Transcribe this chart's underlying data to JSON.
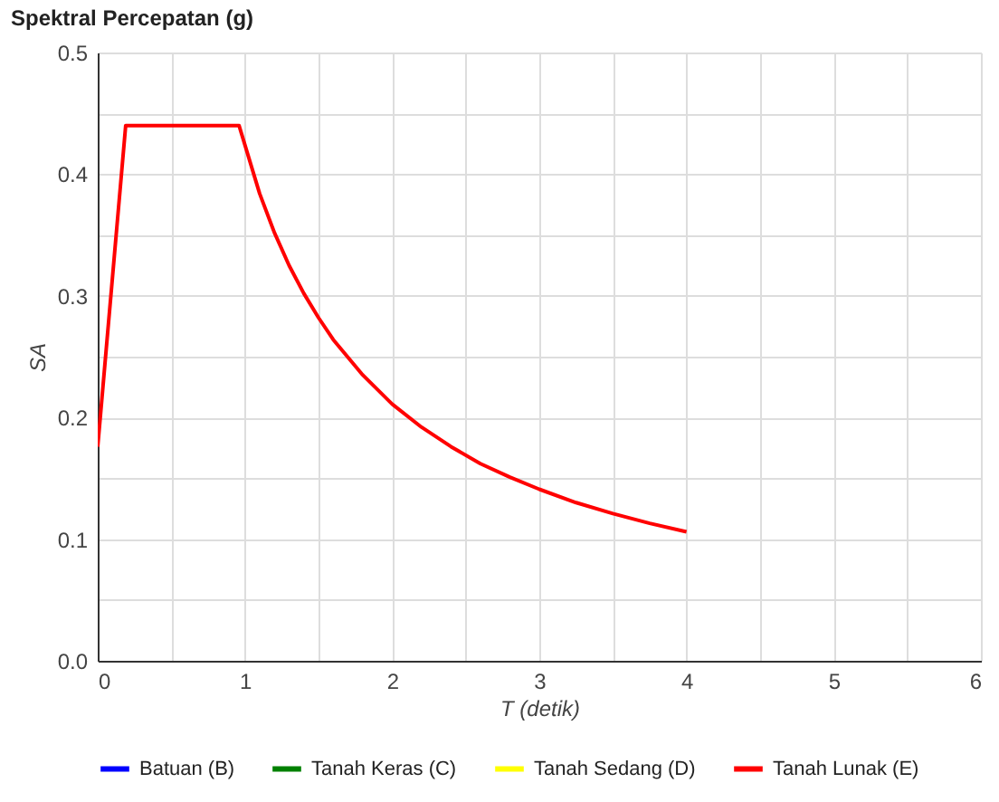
{
  "chart_data": {
    "type": "line",
    "title": "Spektral Percepatan (g)",
    "xlabel": "T (detik)",
    "ylabel": "SA",
    "xlim": [
      0,
      6
    ],
    "xticks": [
      0,
      {
        "value": 0.5,
        "label": null
      },
      1,
      {
        "value": 1.5,
        "label": null
      },
      2,
      {
        "value": 2.5,
        "label": null
      },
      3,
      {
        "value": 3.5,
        "label": null
      },
      4,
      {
        "value": 4.5,
        "label": null
      },
      5,
      {
        "value": 5.5,
        "label": null
      },
      6
    ],
    "ylim": [
      0,
      0.5
    ],
    "yticks": [
      {
        "value": 0,
        "label": "0.0"
      },
      {
        "value": 0.05,
        "label": null
      },
      0.1,
      {
        "value": 0.15,
        "label": null
      },
      0.2,
      {
        "value": 0.25,
        "label": null
      },
      0.3,
      {
        "value": 0.35,
        "label": null
      },
      0.4,
      {
        "value": 0.45,
        "label": null
      },
      0.5
    ],
    "grid": true,
    "legend": "bottom",
    "marker": "none",
    "series": [
      {
        "name": "Batuan (B)",
        "color": "#0000ff"
      },
      {
        "name": "Tanah Keras (C)",
        "color": "#008000"
      },
      {
        "name": "Tanah Sedang (D)",
        "color": "#ffff00"
      },
      {
        "name": "Tanah Lunak (E)",
        "color": "#ff0000",
        "x": [
          0,
          0.19,
          0.96,
          1.1,
          1.2,
          1.3,
          1.4,
          1.5,
          1.6,
          1.8,
          2,
          2.2,
          2.4,
          2.6,
          2.8,
          3,
          3.25,
          3.5,
          3.75,
          4
        ],
        "values": [
          0.176,
          0.44,
          0.44,
          0.384,
          0.352,
          0.325,
          0.302,
          0.282,
          0.264,
          0.235,
          0.211,
          0.192,
          0.176,
          0.162,
          0.151,
          0.141,
          0.13,
          0.121,
          0.113,
          0.106
        ]
      }
    ]
  }
}
